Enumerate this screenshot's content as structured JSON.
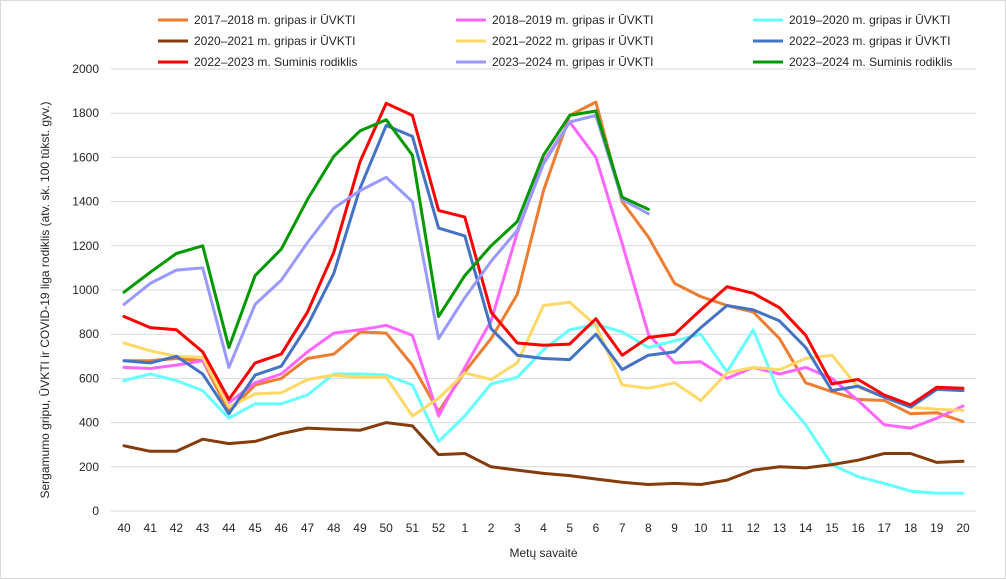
{
  "chart_data": {
    "type": "line",
    "xlabel": "Metų savaitė",
    "ylabel": "Sergamumo gripu, ŪVKTI  ir COVID-19 liga rodiklis (atv. sk. 100 tūkst. gyv.)",
    "ylim": [
      0,
      2000
    ],
    "yticks": [
      0,
      200,
      400,
      600,
      800,
      1000,
      1200,
      1400,
      1600,
      1800,
      2000
    ],
    "grid": true,
    "legend_position": "top",
    "categories": [
      "40",
      "41",
      "42",
      "43",
      "44",
      "45",
      "46",
      "47",
      "48",
      "49",
      "50",
      "51",
      "52",
      "1",
      "2",
      "3",
      "4",
      "5",
      "6",
      "7",
      "8",
      "9",
      "10",
      "11",
      "12",
      "13",
      "14",
      "15",
      "16",
      "17",
      "18",
      "19",
      "20"
    ],
    "series": [
      {
        "name": "2017–2018 m. gripas ir ŪVKTI",
        "color": "#ED7D31",
        "values": [
          680,
          680,
          690,
          680,
          450,
          570,
          600,
          690,
          710,
          810,
          805,
          660,
          450,
          630,
          780,
          980,
          1450,
          1790,
          1850,
          1400,
          1240,
          1030,
          970,
          930,
          900,
          780,
          580,
          540,
          505,
          500,
          440,
          445,
          405
        ]
      },
      {
        "name": "2018–2019 m. gripas ir ŪVKTI",
        "color": "#FF66FF",
        "values": [
          650,
          645,
          660,
          680,
          490,
          580,
          620,
          720,
          805,
          820,
          840,
          795,
          430,
          650,
          860,
          1260,
          1580,
          1760,
          1600,
          1210,
          800,
          670,
          675,
          600,
          650,
          620,
          650,
          600,
          500,
          390,
          375,
          420,
          475
        ]
      },
      {
        "name": "2019–2020 m. gripas ir ŪVKTI",
        "color": "#66FFFF",
        "values": [
          590,
          620,
          590,
          545,
          420,
          485,
          485,
          525,
          620,
          620,
          615,
          570,
          315,
          430,
          575,
          605,
          730,
          820,
          845,
          810,
          740,
          770,
          800,
          630,
          820,
          530,
          390,
          210,
          155,
          125,
          90,
          80,
          80
        ]
      },
      {
        "name": "2020–2021 m. gripas ir ŪVKTI",
        "color": "#843C0C",
        "values": [
          295,
          270,
          270,
          325,
          305,
          315,
          350,
          375,
          370,
          365,
          400,
          385,
          255,
          260,
          200,
          185,
          170,
          160,
          145,
          130,
          120,
          125,
          120,
          140,
          185,
          200,
          195,
          210,
          230,
          260,
          260,
          220,
          225
        ]
      },
      {
        "name": "2021–2022 m. gripas ir ŪVKTI",
        "color": "#FFD966",
        "values": [
          760,
          725,
          700,
          695,
          470,
          530,
          535,
          595,
          615,
          605,
          605,
          430,
          510,
          625,
          595,
          670,
          930,
          945,
          840,
          570,
          555,
          580,
          500,
          625,
          650,
          640,
          690,
          705,
          560,
          515,
          470,
          460,
          455
        ]
      },
      {
        "name": "2022–2023 m. gripas ir ŪVKTI",
        "color": "#4472C4",
        "values": [
          680,
          670,
          700,
          620,
          440,
          615,
          655,
          840,
          1075,
          1460,
          1745,
          1695,
          1280,
          1245,
          825,
          705,
          690,
          685,
          800,
          640,
          705,
          720,
          830,
          930,
          910,
          860,
          740,
          545,
          565,
          515,
          470,
          550,
          545
        ]
      },
      {
        "name": "2022–2023 m. Suminis rodiklis",
        "color": "#FF0000",
        "values": [
          880,
          830,
          820,
          720,
          505,
          670,
          710,
          900,
          1170,
          1580,
          1845,
          1790,
          1360,
          1330,
          900,
          760,
          750,
          755,
          870,
          705,
          785,
          800,
          910,
          1015,
          985,
          920,
          795,
          575,
          595,
          525,
          480,
          560,
          555
        ]
      },
      {
        "name": "2023–2024 m. gripas ir ŪVKTI",
        "color": "#9999FF",
        "values": [
          935,
          1030,
          1090,
          1100,
          650,
          935,
          1045,
          1215,
          1370,
          1450,
          1510,
          1400,
          780,
          965,
          1130,
          1270,
          1570,
          1760,
          1790,
          1410,
          1345,
          null,
          null,
          null,
          null,
          null,
          null,
          null,
          null,
          null,
          null,
          null,
          null
        ]
      },
      {
        "name": "2023–2024 m. Suminis rodiklis",
        "color": "#009900",
        "values": [
          990,
          1080,
          1165,
          1200,
          740,
          1065,
          1185,
          1410,
          1605,
          1720,
          1770,
          1610,
          880,
          1065,
          1200,
          1310,
          1610,
          1790,
          1810,
          1420,
          1365,
          null,
          null,
          null,
          null,
          null,
          null,
          null,
          null,
          null,
          null,
          null,
          null
        ]
      }
    ]
  }
}
